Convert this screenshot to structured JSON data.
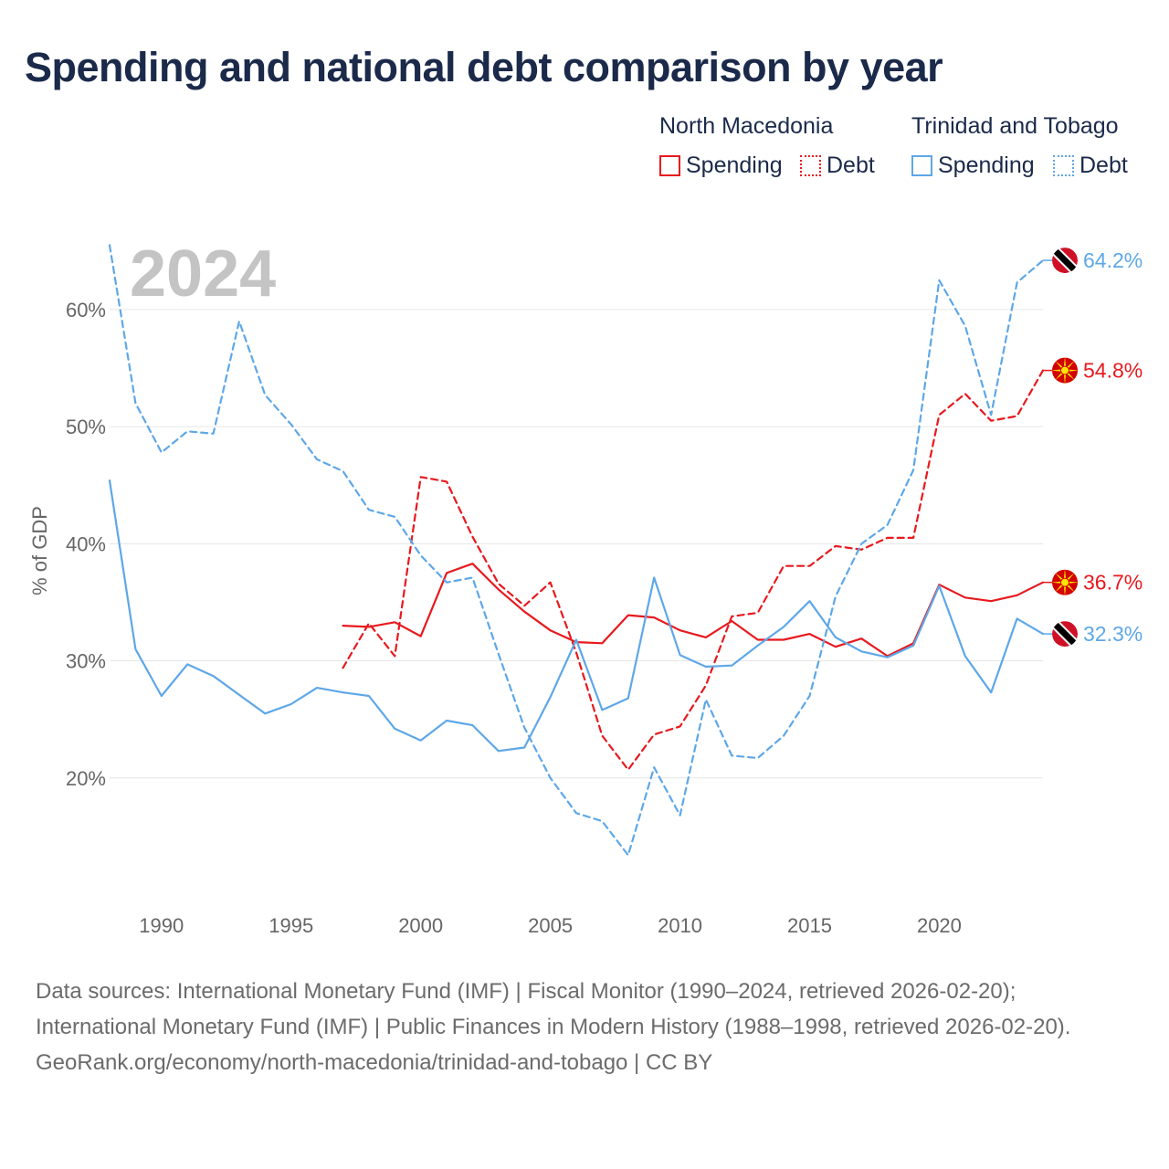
{
  "title": "Spending and national debt comparison by year",
  "legend": {
    "groups": [
      {
        "name": "North Macedonia",
        "color": "#e8191e",
        "spending_label": "Spending",
        "debt_label": "Debt"
      },
      {
        "name": "Trinidad and Tobago",
        "color": "#5ea7e8",
        "spending_label": "Spending",
        "debt_label": "Debt"
      }
    ]
  },
  "footer": {
    "sources": "Data sources: International Monetary Fund (IMF) | Fiscal Monitor (1990–2024, retrieved 2026-02-20); International Monetary Fund (IMF) | Public Finances in Modern History (1988–1998, retrieved 2026-02-20).",
    "credit": "GeoRank.org/economy/north-macedonia/trinidad-and-tobago | CC BY"
  },
  "chart_data": {
    "type": "line",
    "year_label": "2024",
    "ylabel": "% of GDP",
    "xlim": [
      1988,
      2024
    ],
    "ylim": [
      10,
      66
    ],
    "x_ticks": [
      1990,
      1995,
      2000,
      2005,
      2010,
      2015,
      2020
    ],
    "x_tick_labels": [
      "1990",
      "1995",
      "2000",
      "2005",
      "2010",
      "2015",
      "2020"
    ],
    "y_ticks": [
      20,
      30,
      40,
      50,
      60
    ],
    "y_tick_labels": [
      "20%",
      "30%",
      "40%",
      "50%",
      "60%"
    ],
    "grid": true,
    "series": [
      {
        "name": "North Macedonia Spending",
        "country": "North Macedonia",
        "kind": "spending",
        "color": "#e8191e",
        "dash": "solid",
        "flag": "north-macedonia",
        "end_label": "36.7%",
        "x": [
          1997,
          1998,
          1999,
          2000,
          2001,
          2002,
          2003,
          2004,
          2005,
          2006,
          2007,
          2008,
          2009,
          2010,
          2011,
          2012,
          2013,
          2014,
          2015,
          2016,
          2017,
          2018,
          2019,
          2020,
          2021,
          2022,
          2023,
          2024
        ],
        "values": [
          33,
          32.9,
          33.3,
          32.1,
          37.5,
          38.3,
          36.1,
          34.2,
          32.6,
          31.6,
          31.5,
          33.9,
          33.7,
          32.6,
          32,
          33.4,
          31.8,
          31.8,
          32.3,
          31.2,
          31.9,
          30.4,
          31.5,
          36.5,
          35.4,
          35.1,
          35.6,
          36.7
        ]
      },
      {
        "name": "North Macedonia Debt",
        "country": "North Macedonia",
        "kind": "debt",
        "color": "#e8191e",
        "dash": "dashed",
        "flag": "north-macedonia",
        "end_label": "54.8%",
        "x": [
          1997,
          1998,
          1999,
          2000,
          2001,
          2002,
          2003,
          2004,
          2005,
          2006,
          2007,
          2008,
          2009,
          2010,
          2011,
          2012,
          2013,
          2014,
          2015,
          2016,
          2017,
          2018,
          2019,
          2020,
          2021,
          2022,
          2023,
          2024
        ],
        "values": [
          29.4,
          33.2,
          30.4,
          45.7,
          45.3,
          40.6,
          36.6,
          34.7,
          36.7,
          30.7,
          23.6,
          20.7,
          23.7,
          24.4,
          27.9,
          33.8,
          34.1,
          38.1,
          38.1,
          39.8,
          39.5,
          40.5,
          40.5,
          51,
          52.8,
          50.5,
          50.9,
          54.8
        ]
      },
      {
        "name": "Trinidad and Tobago Spending",
        "country": "Trinidad and Tobago",
        "kind": "spending",
        "color": "#5ea7e8",
        "dash": "solid",
        "flag": "trinidad-and-tobago",
        "end_label": "32.3%",
        "x": [
          1988,
          1989,
          1990,
          1991,
          1992,
          1993,
          1994,
          1995,
          1996,
          1997,
          1998,
          1999,
          2000,
          2001,
          2002,
          2003,
          2004,
          2005,
          2006,
          2007,
          2008,
          2009,
          2010,
          2011,
          2012,
          2013,
          2014,
          2015,
          2016,
          2017,
          2018,
          2019,
          2020,
          2021,
          2022,
          2023,
          2024
        ],
        "values": [
          45.4,
          31,
          27,
          29.7,
          28.7,
          27.1,
          25.5,
          26.3,
          27.7,
          27.3,
          27,
          24.2,
          23.2,
          24.9,
          24.5,
          22.3,
          22.6,
          26.9,
          31.8,
          25.8,
          26.8,
          37.1,
          30.5,
          29.5,
          29.6,
          31.3,
          32.9,
          35.1,
          32,
          30.8,
          30.3,
          31.3,
          36.4,
          30.4,
          27.3,
          33.6,
          32.3
        ]
      },
      {
        "name": "Trinidad and Tobago Debt",
        "country": "Trinidad and Tobago",
        "kind": "debt",
        "color": "#5ea7e8",
        "dash": "dashed",
        "flag": "trinidad-and-tobago",
        "end_label": "64.2%",
        "x": [
          1988,
          1989,
          1990,
          1991,
          1992,
          1993,
          1994,
          1995,
          1996,
          1997,
          1998,
          1999,
          2000,
          2001,
          2002,
          2003,
          2004,
          2005,
          2006,
          2007,
          2008,
          2009,
          2010,
          2011,
          2012,
          2013,
          2014,
          2015,
          2016,
          2017,
          2018,
          2019,
          2020,
          2021,
          2022,
          2023,
          2024
        ],
        "values": [
          65.5,
          52,
          47.8,
          49.6,
          49.4,
          59,
          52.7,
          50.2,
          47.2,
          46.2,
          42.9,
          42.3,
          39,
          36.7,
          37.1,
          30.6,
          24.3,
          20,
          17,
          16.3,
          13.4,
          20.9,
          16.8,
          26.7,
          21.9,
          21.7,
          23.6,
          27,
          35.5,
          40,
          41.6,
          46.3,
          62.5,
          58.6,
          51,
          62.3,
          64.2
        ]
      }
    ]
  }
}
